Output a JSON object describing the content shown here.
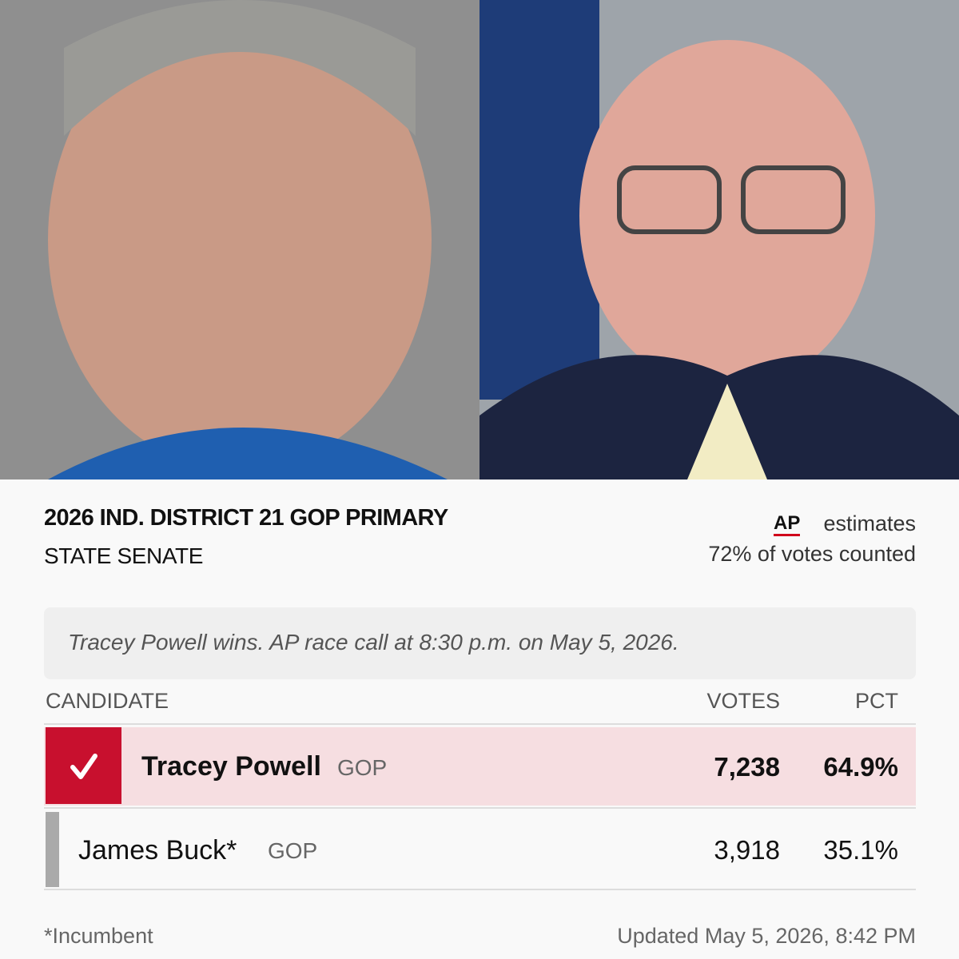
{
  "header": {
    "title": "2026 IND. DISTRICT 21 GOP PRIMARY",
    "subtitle": "STATE SENATE",
    "source": "AP",
    "source_note": "estimates",
    "counted": "72% of votes counted"
  },
  "call": "Tracey Powell wins. AP race call at 8:30 p.m. on May 5, 2026.",
  "table": {
    "columns": [
      "CANDIDATE",
      "VOTES",
      "PCT"
    ],
    "rows": [
      {
        "name": "Tracey Powell",
        "party": "GOP",
        "votes": "7,238",
        "pct": "64.9%"
      },
      {
        "name": "James Buck*",
        "party": "GOP",
        "votes": "3,918",
        "pct": "35.1%"
      }
    ]
  },
  "footer": {
    "note": "*Incumbent",
    "updated_label": "Updated",
    "updated": "May 5, 2026, 8:42 PM"
  }
}
